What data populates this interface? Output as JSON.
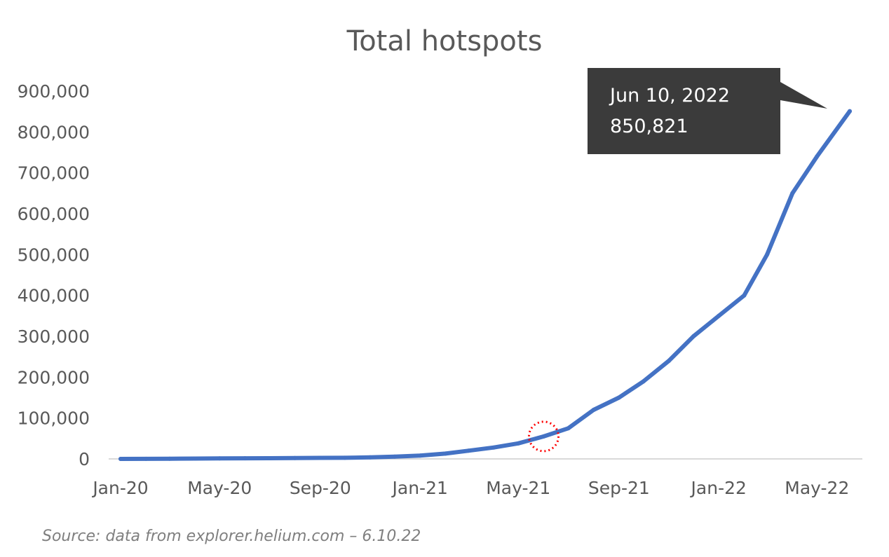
{
  "chart_data": {
    "type": "line",
    "title": "Total hotspots",
    "xlabel": "",
    "ylabel": "",
    "x_tick_labels": [
      "Jan-20",
      "May-20",
      "Sep-20",
      "Jan-21",
      "May-21",
      "Sep-21",
      "Jan-22",
      "May-22"
    ],
    "y_tick_labels": [
      "0",
      "100,000",
      "200,000",
      "300,000",
      "400,000",
      "500,000",
      "600,000",
      "700,000",
      "800,000",
      "900,000"
    ],
    "ylim": [
      0,
      900000
    ],
    "xlim": [
      "2020-01-01",
      "2022-06-10"
    ],
    "grid": "baseline only",
    "legend": "none",
    "series": [
      {
        "color": "#4472C4",
        "x": [
          "2020-01-01",
          "2020-02-01",
          "2020-03-01",
          "2020-04-01",
          "2020-05-01",
          "2020-06-01",
          "2020-07-01",
          "2020-08-01",
          "2020-09-01",
          "2020-10-01",
          "2020-11-01",
          "2020-12-01",
          "2021-01-01",
          "2021-02-01",
          "2021-03-01",
          "2021-04-01",
          "2021-05-01",
          "2021-06-01",
          "2021-07-01",
          "2021-08-01",
          "2021-09-01",
          "2021-10-01",
          "2021-11-01",
          "2021-12-01",
          "2022-01-01",
          "2022-02-01",
          "2022-03-01",
          "2022-04-01",
          "2022-05-01",
          "2022-06-10"
        ],
        "values": [
          0,
          200,
          500,
          800,
          1200,
          1500,
          1800,
          2200,
          2500,
          2800,
          4000,
          5500,
          8000,
          13000,
          20000,
          28000,
          38000,
          55000,
          75000,
          120000,
          150000,
          190000,
          240000,
          300000,
          350000,
          400000,
          500000,
          650000,
          740000,
          850821
        ]
      }
    ],
    "annotations": [
      {
        "type": "callout",
        "date_label": "Jun 10, 2022",
        "value_label": "850,821",
        "points_to": [
          "2022-06-10",
          850821
        ]
      },
      {
        "type": "dotted-circle",
        "color": "#FF0000",
        "at": [
          "2021-06-01",
          55000
        ]
      }
    ],
    "source": "Source: data from explorer.helium.com – 6.10.22"
  }
}
